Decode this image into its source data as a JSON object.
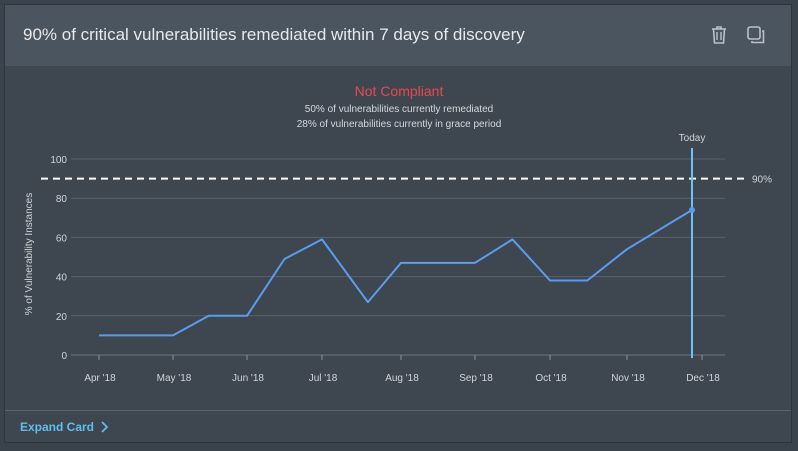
{
  "card": {
    "title": "90% of critical vulnerabilities remediated within 7 days of discovery",
    "delete_icon": "trash-icon",
    "copy_icon": "copy-icon",
    "expand_label": "Expand Card"
  },
  "colors": {
    "line": "#5b9cf0",
    "today": "#6cc3f5",
    "status": "#e8494f",
    "threshold": "#ffffff"
  },
  "chart_data": {
    "type": "line",
    "status": "Not Compliant",
    "subtitle_lines": [
      "50% of vulnerabilities currently remediated",
      "28% of vulnerabilities currently in grace period"
    ],
    "ylabel": "% of Vulnerability Instances",
    "ylim": [
      0,
      100
    ],
    "yticks": [
      0,
      20,
      40,
      60,
      80,
      100
    ],
    "xticks": [
      "Apr '18",
      "May '18",
      "Jun '18",
      "Jul '18",
      "Aug '18",
      "Sep '18",
      "Oct '18",
      "Nov '18",
      "Dec '18"
    ],
    "threshold": {
      "value": 90,
      "label": "90%"
    },
    "today": {
      "label": "Today",
      "x": "2018-11-27"
    },
    "grid": true,
    "series": [
      {
        "points": [
          {
            "x": "2018-04-01",
            "y": 10
          },
          {
            "x": "2018-05-01",
            "y": 10
          },
          {
            "x": "2018-05-16",
            "y": 20
          },
          {
            "x": "2018-06-01",
            "y": 20
          },
          {
            "x": "2018-06-16",
            "y": 49
          },
          {
            "x": "2018-07-01",
            "y": 59
          },
          {
            "x": "2018-07-19",
            "y": 27
          },
          {
            "x": "2018-08-01",
            "y": 47
          },
          {
            "x": "2018-08-16",
            "y": 47
          },
          {
            "x": "2018-09-01",
            "y": 47
          },
          {
            "x": "2018-09-16",
            "y": 59
          },
          {
            "x": "2018-10-01",
            "y": 38
          },
          {
            "x": "2018-10-16",
            "y": 38
          },
          {
            "x": "2018-11-01",
            "y": 54
          },
          {
            "x": "2018-11-27",
            "y": 74
          }
        ]
      }
    ]
  }
}
